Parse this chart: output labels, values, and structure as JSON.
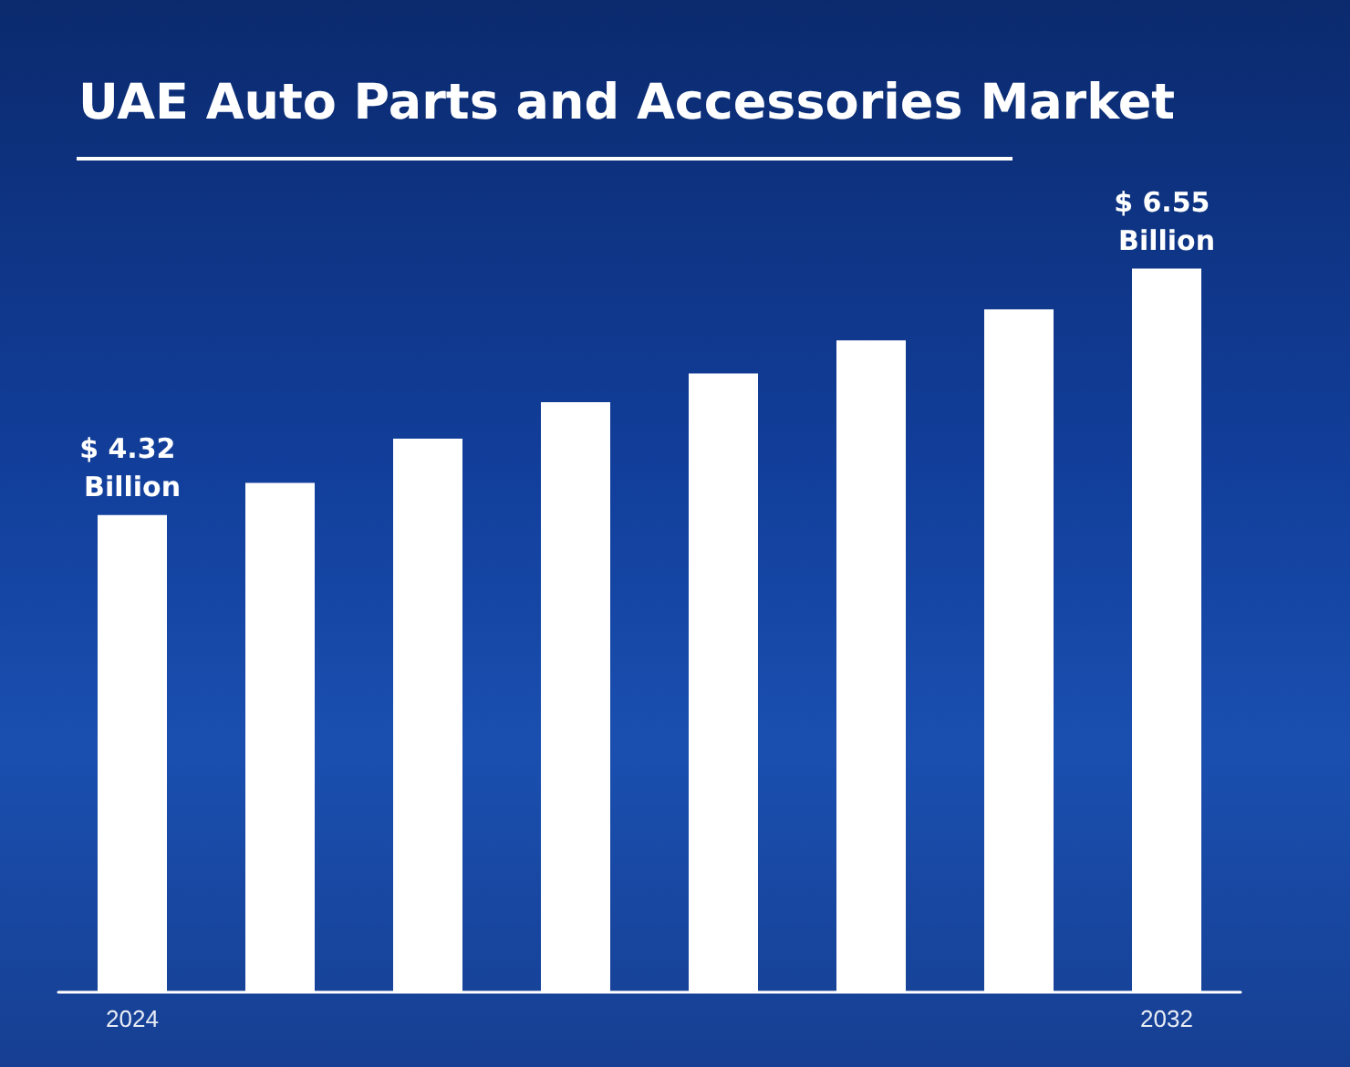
{
  "chart_data": {
    "type": "bar",
    "title": "UAE Auto Parts and Accessories Market",
    "categories": [
      "2024",
      null,
      null,
      null,
      null,
      null,
      null,
      "2032"
    ],
    "values": [
      4.32,
      4.61,
      5.01,
      5.34,
      5.6,
      5.9,
      6.18,
      6.55
    ],
    "value_labels": [
      "$ 4.32 Billion",
      null,
      null,
      null,
      null,
      null,
      null,
      "$ 6.55 Billion"
    ],
    "color": "#ffffff",
    "grid": false,
    "tick_labels": "x"
  }
}
